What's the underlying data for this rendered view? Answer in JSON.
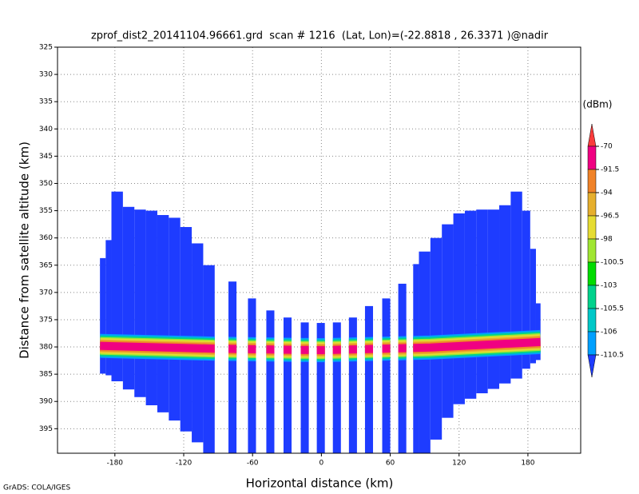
{
  "chart_data": {
    "type": "swath",
    "title": "zprof_dist2_20141104.96661.grd  scan # 1216  (Lat, Lon)=(-22.8818 , 26.3371 )@nadir",
    "x_label": "Horizontal distance (km)",
    "y_label": "Distance from satellite altitude (km)",
    "credit": "GrADS: COLA/IGES",
    "xlim": [
      -230,
      226
    ],
    "xticks": [
      -180,
      -120,
      -60,
      0,
      60,
      120,
      180
    ],
    "ylim": [
      325,
      399.5
    ],
    "yticks": [
      325,
      330,
      335,
      340,
      345,
      350,
      355,
      360,
      365,
      370,
      375,
      380,
      385,
      390,
      395
    ],
    "y_inverted": true,
    "grid": true,
    "columns": [
      {
        "x0": -193,
        "x1": -188,
        "top": 363.7,
        "bottom": 384.9
      },
      {
        "x0": -188,
        "x1": -183,
        "top": 360.4,
        "bottom": 385.2
      },
      {
        "x0": -183,
        "x1": -173,
        "top": 351.5,
        "bottom": 386.3
      },
      {
        "x0": -173,
        "x1": -163,
        "top": 354.3,
        "bottom": 387.8
      },
      {
        "x0": -163,
        "x1": -153,
        "top": 354.8,
        "bottom": 389.2
      },
      {
        "x0": -153,
        "x1": -143,
        "top": 355,
        "bottom": 390.7
      },
      {
        "x0": -143,
        "x1": -133,
        "top": 355.8,
        "bottom": 392
      },
      {
        "x0": -133,
        "x1": -123,
        "top": 356.3,
        "bottom": 393.5
      },
      {
        "x0": -123,
        "x1": -113,
        "top": 358,
        "bottom": 395.5
      },
      {
        "x0": -113,
        "x1": -103,
        "top": 361,
        "bottom": 397.5
      },
      {
        "x0": -103,
        "x1": -93,
        "top": 365,
        "bottom": 399.5
      },
      {
        "x0": -81,
        "x1": -74,
        "top": 368,
        "bottom": 399.5
      },
      {
        "x0": -64,
        "x1": -57,
        "top": 371.1,
        "bottom": 399.5
      },
      {
        "x0": -48,
        "x1": -41,
        "top": 373.3,
        "bottom": 399.5
      },
      {
        "x0": -33,
        "x1": -26,
        "top": 374.6,
        "bottom": 399.5
      },
      {
        "x0": -18,
        "x1": -11,
        "top": 375.5,
        "bottom": 399.5
      },
      {
        "x0": -4,
        "x1": 3,
        "top": 375.6,
        "bottom": 399.5
      },
      {
        "x0": 10,
        "x1": 17,
        "top": 375.5,
        "bottom": 399.5
      },
      {
        "x0": 24,
        "x1": 31,
        "top": 374.6,
        "bottom": 399.5
      },
      {
        "x0": 38,
        "x1": 45,
        "top": 372.5,
        "bottom": 399.5
      },
      {
        "x0": 53,
        "x1": 60,
        "top": 371.1,
        "bottom": 399.5
      },
      {
        "x0": 67,
        "x1": 74,
        "top": 368.4,
        "bottom": 399.5
      },
      {
        "x0": 80,
        "x1": 85,
        "top": 364.8,
        "bottom": 399.5
      },
      {
        "x0": 85,
        "x1": 95,
        "top": 362.5,
        "bottom": 399.5
      },
      {
        "x0": 95,
        "x1": 105,
        "top": 360,
        "bottom": 397
      },
      {
        "x0": 105,
        "x1": 115,
        "top": 357.5,
        "bottom": 393
      },
      {
        "x0": 115,
        "x1": 125,
        "top": 355.5,
        "bottom": 390.5
      },
      {
        "x0": 125,
        "x1": 135,
        "top": 355,
        "bottom": 389.5
      },
      {
        "x0": 135,
        "x1": 145,
        "top": 354.8,
        "bottom": 388.5
      },
      {
        "x0": 145,
        "x1": 155,
        "top": 354.8,
        "bottom": 387.7
      },
      {
        "x0": 155,
        "x1": 165,
        "top": 354,
        "bottom": 386.7
      },
      {
        "x0": 165,
        "x1": 175,
        "top": 351.5,
        "bottom": 385.8
      },
      {
        "x0": 175,
        "x1": 182,
        "top": 355,
        "bottom": 384
      },
      {
        "x0": 182,
        "x1": 187,
        "top": 362,
        "bottom": 383
      },
      {
        "x0": 187,
        "x1": 191,
        "top": 372,
        "bottom": 382.4
      }
    ],
    "surface": {
      "x": [
        -193,
        -95,
        0,
        95,
        191
      ],
      "altitude": [
        379.8,
        380.3,
        380.6,
        380.1,
        379.1
      ]
    },
    "colorbar": {
      "unit": "(dBm)",
      "levels": [
        -70,
        -91.5,
        -94,
        -96.5,
        -98,
        -100.5,
        -103,
        -105.5,
        -106,
        -110.5
      ],
      "colors": [
        "#fa3c3c",
        "#f00082",
        "#f08228",
        "#e6af2d",
        "#e6dc32",
        "#a0e632",
        "#00dc00",
        "#00d28c",
        "#00c8c8",
        "#00a0ff",
        "#1e3cff"
      ]
    }
  }
}
